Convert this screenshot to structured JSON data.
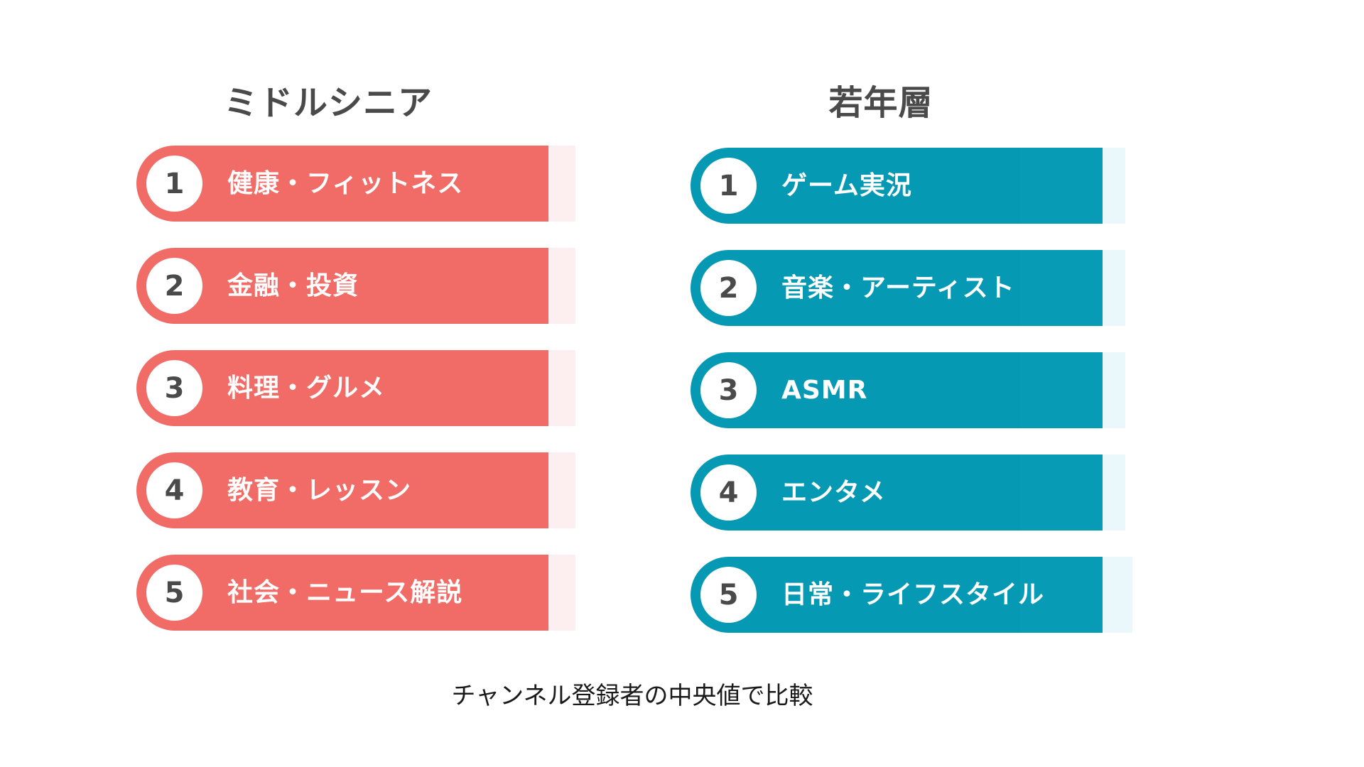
{
  "columns": {
    "senior": {
      "title": "ミドルシニア",
      "color": "#f16c66",
      "items": [
        {
          "rank": "1",
          "label": "健康・フィットネス"
        },
        {
          "rank": "2",
          "label": "金融・投資"
        },
        {
          "rank": "3",
          "label": "料理・グルメ"
        },
        {
          "rank": "4",
          "label": "教育・レッスン"
        },
        {
          "rank": "5",
          "label": "社会・ニュース解説"
        }
      ]
    },
    "youth": {
      "title": "若年層",
      "color": "#0599b3",
      "items": [
        {
          "rank": "1",
          "label": "ゲーム実況"
        },
        {
          "rank": "2",
          "label": "音楽・アーティスト"
        },
        {
          "rank": "3",
          "label": "ASMR"
        },
        {
          "rank": "4",
          "label": "エンタメ"
        },
        {
          "rank": "5",
          "label": "日常・ライフスタイル"
        }
      ]
    }
  },
  "caption": "チャンネル登録者の中央値で比較"
}
